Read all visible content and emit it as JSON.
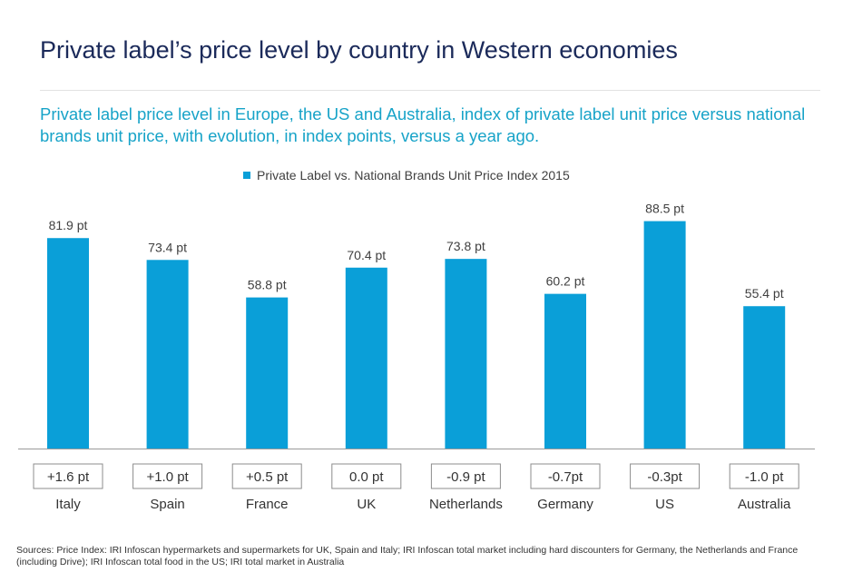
{
  "title": "Private label’s price level by country in Western economies",
  "subtitle": "Private label price level in Europe, the US and Australia, index of private label unit price versus national brands unit price, with evolution, in index points, versus a year ago.",
  "sources": "Sources: Price Index: IRI Infoscan hypermarkets and supermarkets for UK, Spain and Italy; IRI Infoscan total market including hard discounters for Germany, the Netherlands and France (including Drive); IRI Infoscan total food in the US; IRI total market in Australia",
  "colors": {
    "bar": "#0a9fd8",
    "title": "#1b2a5a",
    "subtitle": "#17a3c8"
  },
  "chart_data": {
    "type": "bar",
    "categories": [
      "Italy",
      "Spain",
      "France",
      "UK",
      "Netherlands",
      "Germany",
      "US",
      "Australia"
    ],
    "series": [
      {
        "name": "Private Label vs. National Brands Unit Price Index 2015",
        "values": [
          81.9,
          73.4,
          58.8,
          70.4,
          73.8,
          60.2,
          88.5,
          55.4
        ]
      }
    ],
    "data_labels": [
      "81.9 pt",
      "73.4 pt",
      "58.8 pt",
      "70.4 pt",
      "73.8 pt",
      "60.2 pt",
      "88.5 pt",
      "55.4 pt"
    ],
    "change_labels": [
      "+1.6 pt",
      "+1.0 pt",
      "+0.5 pt",
      "0.0 pt",
      "-0.9 pt",
      "-0.7pt",
      "-0.3pt",
      "-1.0 pt"
    ],
    "ylim": [
      0,
      100
    ],
    "grid": false,
    "legend_position": "top"
  }
}
